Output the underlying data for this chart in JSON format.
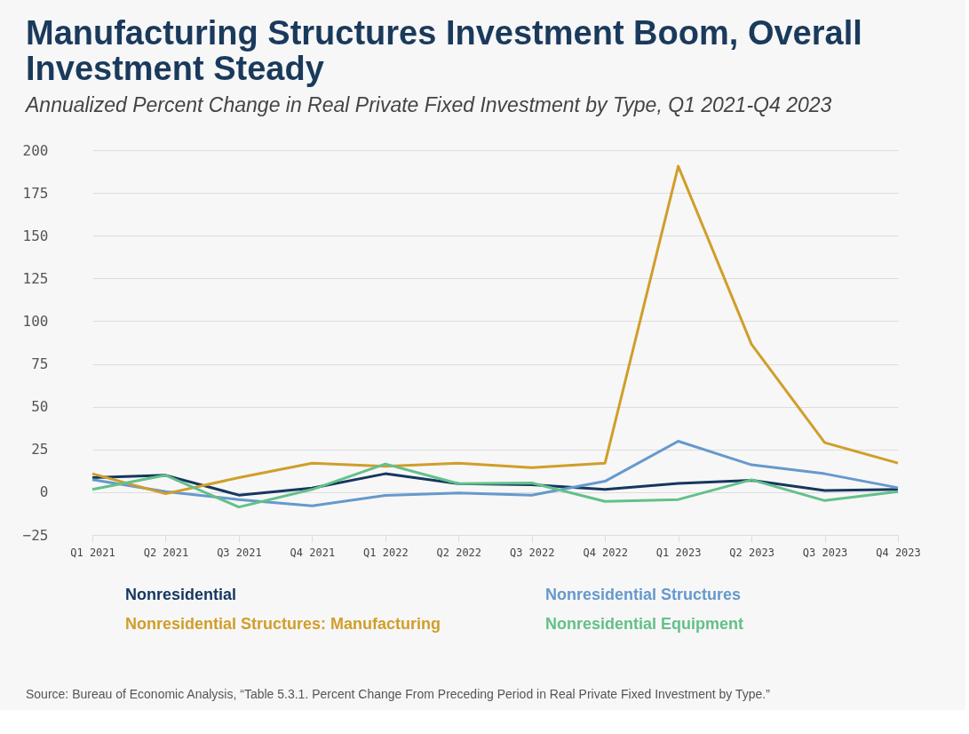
{
  "chart_data": {
    "type": "line",
    "title": "Manufacturing Structures Investment Boom, Overall Investment Steady",
    "subtitle": "Annualized Percent Change in Real Private Fixed Investment by Type, Q1 2021-Q4 2023",
    "categories": [
      "Q1 2021",
      "Q2 2021",
      "Q3 2021",
      "Q4 2021",
      "Q1 2022",
      "Q2 2022",
      "Q3 2022",
      "Q4 2022",
      "Q1 2023",
      "Q2 2023",
      "Q3 2023",
      "Q4 2023"
    ],
    "series": [
      {
        "name": "Nonresidential",
        "color": "#15375e",
        "values": [
          8.5,
          9.9,
          -1.7,
          2.4,
          10.8,
          5.0,
          4.3,
          1.6,
          5.2,
          6.9,
          1.0,
          1.6
        ]
      },
      {
        "name": "Nonresidential Structures",
        "color": "#6699cc",
        "values": [
          7.3,
          0.3,
          -4.3,
          -8.0,
          -1.9,
          -0.5,
          -1.7,
          6.4,
          29.8,
          16.0,
          10.8,
          2.6
        ]
      },
      {
        "name": "Nonresidential Structures: Manufacturing",
        "color": "#d09e2a",
        "values": [
          10.8,
          -0.9,
          8.5,
          17.0,
          15.1,
          17.0,
          14.4,
          17.0,
          190.6,
          86.5,
          29.0,
          17.0
        ]
      },
      {
        "name": "Nonresidential Equipment",
        "color": "#63c08a",
        "values": [
          1.6,
          9.9,
          -8.7,
          1.6,
          16.5,
          5.0,
          5.4,
          -5.4,
          -4.3,
          7.3,
          -4.9,
          0.3
        ]
      }
    ],
    "ylim": [
      -25,
      200
    ],
    "yticks": [
      -25,
      0,
      25,
      50,
      75,
      100,
      125,
      150,
      175,
      200
    ],
    "grid": "y",
    "legend": "bottom",
    "marker": "none",
    "line_style": "solid",
    "annotations": [
      "Source: Bureau of Economic Analysis, “Table 5.3.1. Percent Change From Preceding Period in Real Private Fixed Investment by Type.”"
    ]
  }
}
